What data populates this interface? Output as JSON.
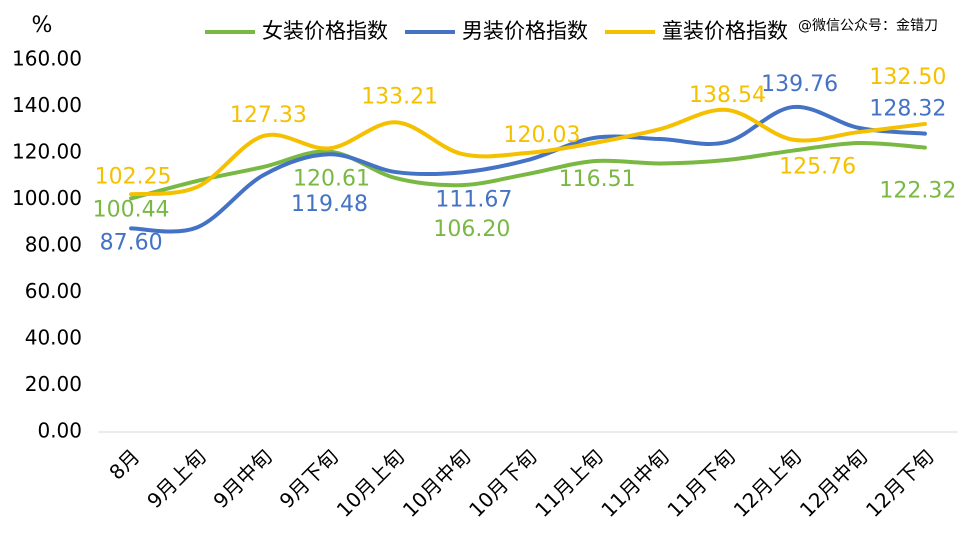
{
  "chart_data": {
    "type": "line",
    "unit_label": "%",
    "watermark": "@微信公众号：金错刀",
    "categories": [
      "8月",
      "9月上旬",
      "9月中旬",
      "9月下旬",
      "10月上旬",
      "10月中旬",
      "10月下旬",
      "11月上旬",
      "11月中旬",
      "11月下旬",
      "12月上旬",
      "12月中旬",
      "12月下旬"
    ],
    "ylim": [
      0,
      160
    ],
    "yticks": [
      {
        "value": 0,
        "label": "0.00"
      },
      {
        "value": 20,
        "label": "20.00"
      },
      {
        "value": 40,
        "label": "40.00"
      },
      {
        "value": 60,
        "label": "60.00"
      },
      {
        "value": 80,
        "label": "80.00"
      },
      {
        "value": 100,
        "label": "100.00"
      },
      {
        "value": 120,
        "label": "120.00"
      },
      {
        "value": 140,
        "label": "140.00"
      },
      {
        "value": 160,
        "label": "160.00"
      }
    ],
    "grid": false,
    "smooth": true,
    "legend": "top",
    "series": [
      {
        "name": "女装价格指数",
        "color": "#78b843",
        "values": [
          100.44,
          108,
          114,
          120.61,
          109.2,
          106.2,
          111,
          116.51,
          115.5,
          117,
          121,
          124.3,
          122.32
        ],
        "value_labels": [
          "100.44",
          null,
          null,
          "120.61",
          null,
          "106.20",
          null,
          "116.51",
          null,
          null,
          null,
          null,
          "122.32"
        ]
      },
      {
        "name": "男装价格指数",
        "color": "#4472c4",
        "values": [
          87.6,
          88,
          110.5,
          119.48,
          111.8,
          111.67,
          117,
          126.5,
          126,
          124.7,
          139.76,
          130.8,
          128.32
        ],
        "value_labels": [
          "87.60",
          null,
          null,
          "119.48",
          null,
          "111.67",
          null,
          null,
          null,
          null,
          "139.76",
          null,
          "128.32"
        ]
      },
      {
        "name": "童装价格指数",
        "color": "#f5c000",
        "values": [
          102.25,
          105.4,
          127.33,
          122,
          133.21,
          119.6,
          120.03,
          124.3,
          130.3,
          138.54,
          125.76,
          129,
          132.5
        ],
        "value_labels": [
          "102.25",
          null,
          "127.33",
          null,
          "133.21",
          null,
          "120.03",
          null,
          null,
          "138.54",
          "125.76",
          null,
          "132.50"
        ]
      }
    ]
  }
}
